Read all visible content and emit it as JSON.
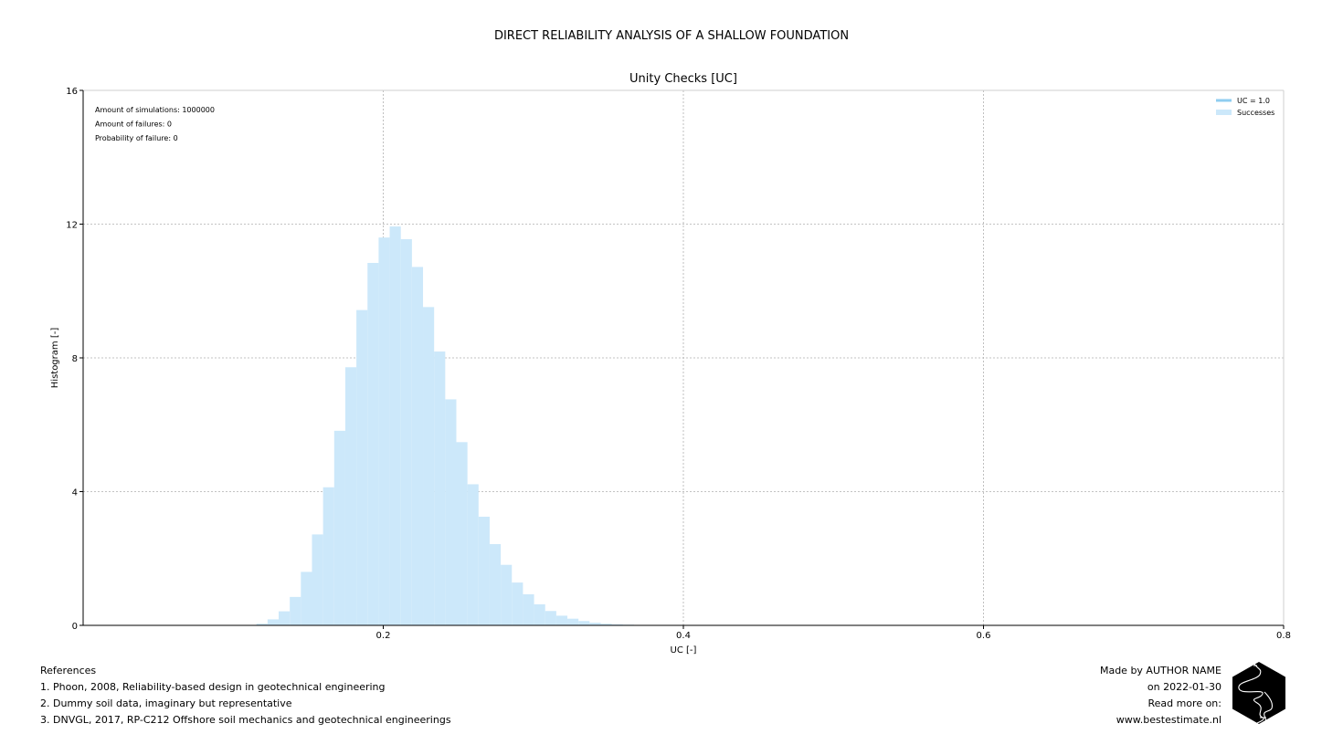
{
  "suptitle": "DIRECT RELIABILITY ANALYSIS OF A SHALLOW FOUNDATION",
  "chart_data": {
    "type": "histogram",
    "title": "Unity Checks [UC]",
    "xlabel": "UC [-]",
    "ylabel": "Histogram [-]",
    "xlim": [
      0.0,
      0.8
    ],
    "ylim": [
      0,
      16
    ],
    "xticks": [
      0.2,
      0.4,
      0.6,
      0.8
    ],
    "xtick_labels": [
      "0.2",
      "0.4",
      "0.6",
      "0.8"
    ],
    "yticks": [
      0,
      4,
      8,
      12,
      16
    ],
    "ytick_labels": [
      "0",
      "4",
      "8",
      "12",
      "16"
    ],
    "grid": true,
    "legend_position": "top-right",
    "legend": [
      {
        "label": "UC = 1.0",
        "kind": "line",
        "color": "#8fcdf0"
      },
      {
        "label": "Successes",
        "kind": "patch",
        "color": "#cce8fa"
      }
    ],
    "annotations": [
      "Amount of simulations: 1000000",
      "Amount of failures: 0",
      "Probability of failure: 0"
    ],
    "series": [
      {
        "name": "Successes",
        "color": "#cce8fa",
        "bin_edges": [
          0.1155,
          0.1229,
          0.1303,
          0.1377,
          0.1451,
          0.1525,
          0.1599,
          0.1673,
          0.1747,
          0.1821,
          0.1895,
          0.1969,
          0.2043,
          0.2117,
          0.2191,
          0.2265,
          0.2339,
          0.2413,
          0.2487,
          0.2561,
          0.2635,
          0.2709,
          0.2783,
          0.2857,
          0.2931,
          0.3005,
          0.3079,
          0.3153,
          0.3227,
          0.3301,
          0.3375,
          0.3449,
          0.3523,
          0.3597,
          0.3671
        ],
        "values": [
          0.05,
          0.18,
          0.42,
          0.85,
          1.6,
          2.72,
          4.13,
          5.82,
          7.72,
          9.43,
          10.84,
          11.6,
          11.93,
          11.55,
          10.72,
          9.52,
          8.19,
          6.76,
          5.48,
          4.22,
          3.25,
          2.43,
          1.81,
          1.28,
          0.93,
          0.63,
          0.43,
          0.29,
          0.2,
          0.13,
          0.08,
          0.05,
          0.03,
          0.02
        ]
      }
    ]
  },
  "references": {
    "title": "References",
    "items": [
      "1. Phoon, 2008, Reliability-based design in geotechnical engineering",
      "2. Dummy soil data, imaginary but representative",
      "3. DNVGL, 2017, RP-C212 Offshore soil mechanics and geotechnical engineerings"
    ]
  },
  "credits": {
    "line1": "Made by AUTHOR NAME",
    "line2": "on 2022-01-30",
    "line3": "Read more on:",
    "line4": "www.bestestimate.nl"
  },
  "logo": {
    "icon": "hexagon-logo-icon"
  }
}
